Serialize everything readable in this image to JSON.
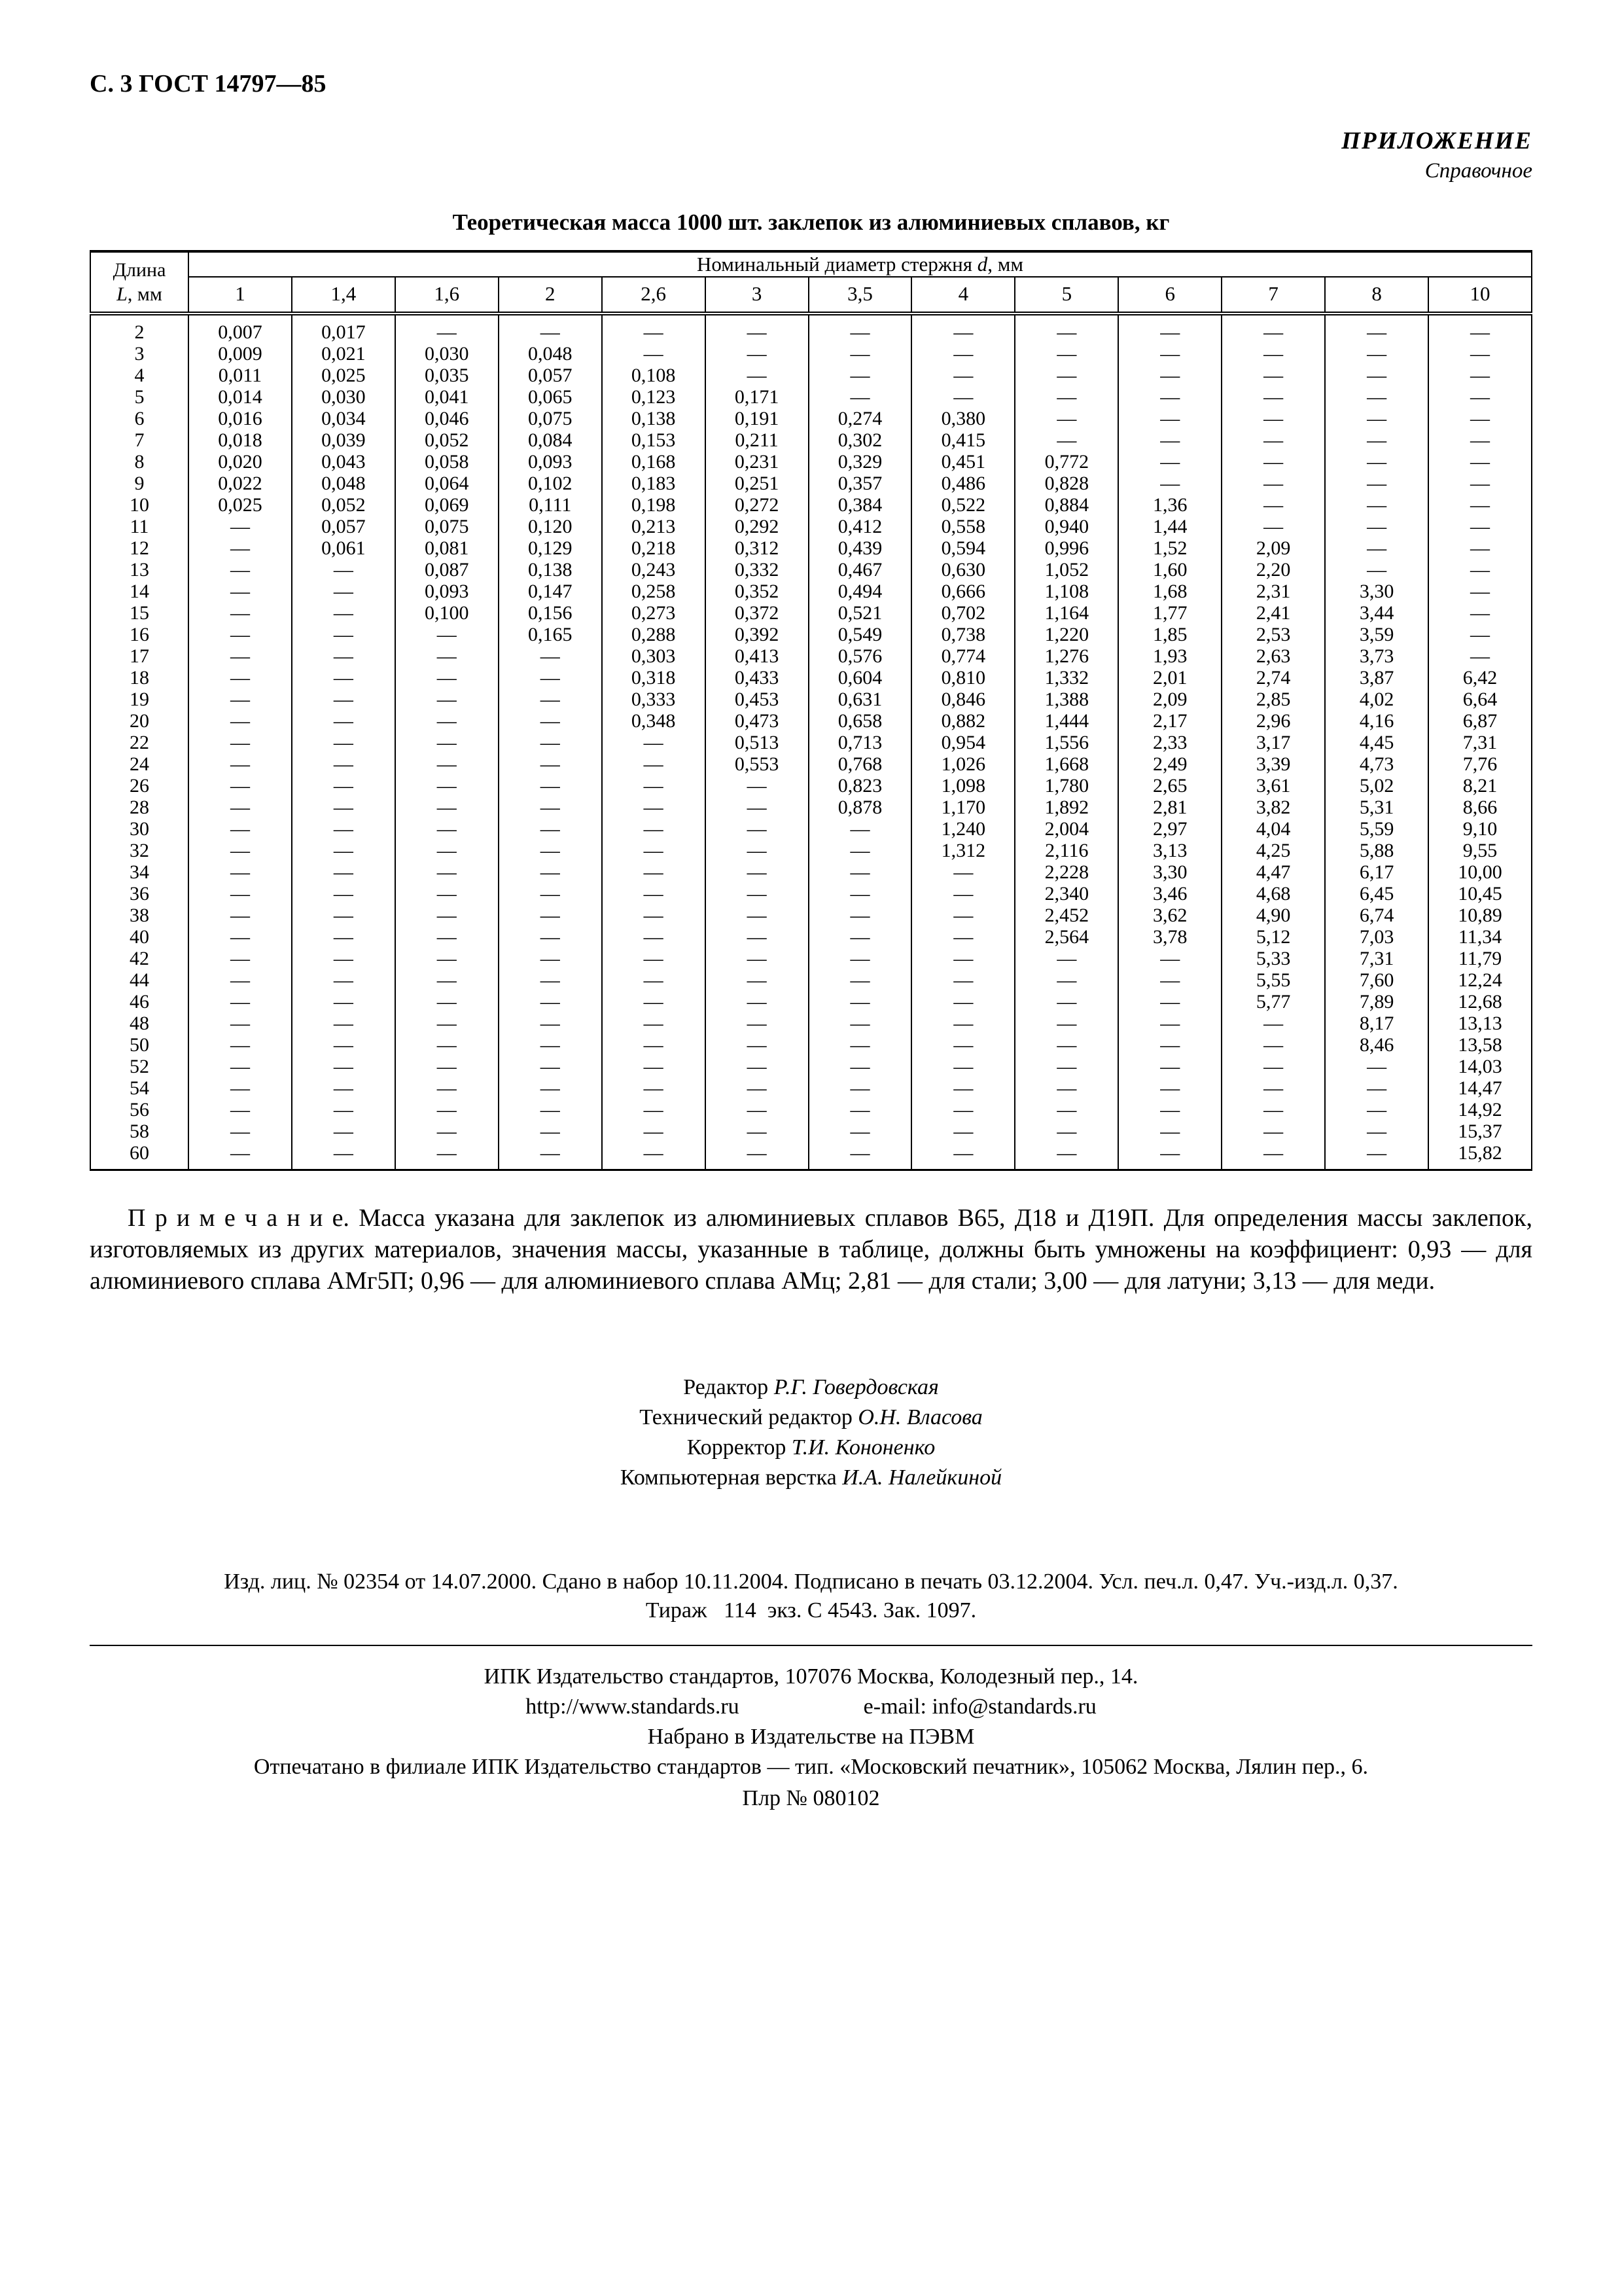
{
  "page_header": "С. 3 ГОСТ 14797—85",
  "annex": {
    "title": "ПРИЛОЖЕНИЕ",
    "subtitle": "Справочное"
  },
  "table_title": "Теоретическая масса 1000 шт. заклепок из алюминиевых сплавов, кг",
  "table": {
    "length_label": "Длина",
    "length_symbol": "L",
    "length_unit": ", мм",
    "diameter_prefix": "Номинальный диаметр стержня ",
    "diameter_symbol": "d",
    "diameter_suffix": ", мм",
    "diameters": [
      "1",
      "1,4",
      "1,6",
      "2",
      "2,6",
      "3",
      "3,5",
      "4",
      "5",
      "6",
      "7",
      "8",
      "10"
    ],
    "rows": [
      {
        "L": "2",
        "values": [
          "0,007",
          "0,017",
          "—",
          "—",
          "—",
          "—",
          "—",
          "—",
          "—",
          "—",
          "—",
          "—",
          "—"
        ]
      },
      {
        "L": "3",
        "values": [
          "0,009",
          "0,021",
          "0,030",
          "0,048",
          "—",
          "—",
          "—",
          "—",
          "—",
          "—",
          "—",
          "—",
          "—"
        ]
      },
      {
        "L": "4",
        "values": [
          "0,011",
          "0,025",
          "0,035",
          "0,057",
          "0,108",
          "—",
          "—",
          "—",
          "—",
          "—",
          "—",
          "—",
          "—"
        ]
      },
      {
        "L": "5",
        "values": [
          "0,014",
          "0,030",
          "0,041",
          "0,065",
          "0,123",
          "0,171",
          "—",
          "—",
          "—",
          "—",
          "—",
          "—",
          "—"
        ]
      },
      {
        "L": "6",
        "values": [
          "0,016",
          "0,034",
          "0,046",
          "0,075",
          "0,138",
          "0,191",
          "0,274",
          "0,380",
          "—",
          "—",
          "—",
          "—",
          "—"
        ]
      },
      {
        "L": "7",
        "values": [
          "0,018",
          "0,039",
          "0,052",
          "0,084",
          "0,153",
          "0,211",
          "0,302",
          "0,415",
          "—",
          "—",
          "—",
          "—",
          "—"
        ]
      },
      {
        "L": "8",
        "values": [
          "0,020",
          "0,043",
          "0,058",
          "0,093",
          "0,168",
          "0,231",
          "0,329",
          "0,451",
          "0,772",
          "—",
          "—",
          "—",
          "—"
        ]
      },
      {
        "L": "9",
        "values": [
          "0,022",
          "0,048",
          "0,064",
          "0,102",
          "0,183",
          "0,251",
          "0,357",
          "0,486",
          "0,828",
          "—",
          "—",
          "—",
          "—"
        ]
      },
      {
        "L": "10",
        "values": [
          "0,025",
          "0,052",
          "0,069",
          "0,111",
          "0,198",
          "0,272",
          "0,384",
          "0,522",
          "0,884",
          "1,36",
          "—",
          "—",
          "—"
        ]
      },
      {
        "L": "11",
        "values": [
          "—",
          "0,057",
          "0,075",
          "0,120",
          "0,213",
          "0,292",
          "0,412",
          "0,558",
          "0,940",
          "1,44",
          "—",
          "—",
          "—"
        ]
      },
      {
        "L": "12",
        "values": [
          "—",
          "0,061",
          "0,081",
          "0,129",
          "0,218",
          "0,312",
          "0,439",
          "0,594",
          "0,996",
          "1,52",
          "2,09",
          "—",
          "—"
        ]
      },
      {
        "L": "13",
        "values": [
          "—",
          "—",
          "0,087",
          "0,138",
          "0,243",
          "0,332",
          "0,467",
          "0,630",
          "1,052",
          "1,60",
          "2,20",
          "—",
          "—"
        ]
      },
      {
        "L": "14",
        "values": [
          "—",
          "—",
          "0,093",
          "0,147",
          "0,258",
          "0,352",
          "0,494",
          "0,666",
          "1,108",
          "1,68",
          "2,31",
          "3,30",
          "—"
        ]
      },
      {
        "L": "15",
        "values": [
          "—",
          "—",
          "0,100",
          "0,156",
          "0,273",
          "0,372",
          "0,521",
          "0,702",
          "1,164",
          "1,77",
          "2,41",
          "3,44",
          "—"
        ]
      },
      {
        "L": "16",
        "values": [
          "—",
          "—",
          "—",
          "0,165",
          "0,288",
          "0,392",
          "0,549",
          "0,738",
          "1,220",
          "1,85",
          "2,53",
          "3,59",
          "—"
        ]
      },
      {
        "L": "17",
        "values": [
          "—",
          "—",
          "—",
          "—",
          "0,303",
          "0,413",
          "0,576",
          "0,774",
          "1,276",
          "1,93",
          "2,63",
          "3,73",
          "—"
        ]
      },
      {
        "L": "18",
        "values": [
          "—",
          "—",
          "—",
          "—",
          "0,318",
          "0,433",
          "0,604",
          "0,810",
          "1,332",
          "2,01",
          "2,74",
          "3,87",
          "6,42"
        ]
      },
      {
        "L": "19",
        "values": [
          "—",
          "—",
          "—",
          "—",
          "0,333",
          "0,453",
          "0,631",
          "0,846",
          "1,388",
          "2,09",
          "2,85",
          "4,02",
          "6,64"
        ]
      },
      {
        "L": "20",
        "values": [
          "—",
          "—",
          "—",
          "—",
          "0,348",
          "0,473",
          "0,658",
          "0,882",
          "1,444",
          "2,17",
          "2,96",
          "4,16",
          "6,87"
        ]
      },
      {
        "L": "22",
        "values": [
          "—",
          "—",
          "—",
          "—",
          "—",
          "0,513",
          "0,713",
          "0,954",
          "1,556",
          "2,33",
          "3,17",
          "4,45",
          "7,31"
        ]
      },
      {
        "L": "24",
        "values": [
          "—",
          "—",
          "—",
          "—",
          "—",
          "0,553",
          "0,768",
          "1,026",
          "1,668",
          "2,49",
          "3,39",
          "4,73",
          "7,76"
        ]
      },
      {
        "L": "26",
        "values": [
          "—",
          "—",
          "—",
          "—",
          "—",
          "—",
          "0,823",
          "1,098",
          "1,780",
          "2,65",
          "3,61",
          "5,02",
          "8,21"
        ]
      },
      {
        "L": "28",
        "values": [
          "—",
          "—",
          "—",
          "—",
          "—",
          "—",
          "0,878",
          "1,170",
          "1,892",
          "2,81",
          "3,82",
          "5,31",
          "8,66"
        ]
      },
      {
        "L": "30",
        "values": [
          "—",
          "—",
          "—",
          "—",
          "—",
          "—",
          "—",
          "1,240",
          "2,004",
          "2,97",
          "4,04",
          "5,59",
          "9,10"
        ]
      },
      {
        "L": "32",
        "values": [
          "—",
          "—",
          "—",
          "—",
          "—",
          "—",
          "—",
          "1,312",
          "2,116",
          "3,13",
          "4,25",
          "5,88",
          "9,55"
        ]
      },
      {
        "L": "34",
        "values": [
          "—",
          "—",
          "—",
          "—",
          "—",
          "—",
          "—",
          "—",
          "2,228",
          "3,30",
          "4,47",
          "6,17",
          "10,00"
        ]
      },
      {
        "L": "36",
        "values": [
          "—",
          "—",
          "—",
          "—",
          "—",
          "—",
          "—",
          "—",
          "2,340",
          "3,46",
          "4,68",
          "6,45",
          "10,45"
        ]
      },
      {
        "L": "38",
        "values": [
          "—",
          "—",
          "—",
          "—",
          "—",
          "—",
          "—",
          "—",
          "2,452",
          "3,62",
          "4,90",
          "6,74",
          "10,89"
        ]
      },
      {
        "L": "40",
        "values": [
          "—",
          "—",
          "—",
          "—",
          "—",
          "—",
          "—",
          "—",
          "2,564",
          "3,78",
          "5,12",
          "7,03",
          "11,34"
        ]
      },
      {
        "L": "42",
        "values": [
          "—",
          "—",
          "—",
          "—",
          "—",
          "—",
          "—",
          "—",
          "—",
          "—",
          "5,33",
          "7,31",
          "11,79"
        ]
      },
      {
        "L": "44",
        "values": [
          "—",
          "—",
          "—",
          "—",
          "—",
          "—",
          "—",
          "—",
          "—",
          "—",
          "5,55",
          "7,60",
          "12,24"
        ]
      },
      {
        "L": "46",
        "values": [
          "—",
          "—",
          "—",
          "—",
          "—",
          "—",
          "—",
          "—",
          "—",
          "—",
          "5,77",
          "7,89",
          "12,68"
        ]
      },
      {
        "L": "48",
        "values": [
          "—",
          "—",
          "—",
          "—",
          "—",
          "—",
          "—",
          "—",
          "—",
          "—",
          "—",
          "8,17",
          "13,13"
        ]
      },
      {
        "L": "50",
        "values": [
          "—",
          "—",
          "—",
          "—",
          "—",
          "—",
          "—",
          "—",
          "—",
          "—",
          "—",
          "8,46",
          "13,58"
        ]
      },
      {
        "L": "52",
        "values": [
          "—",
          "—",
          "—",
          "—",
          "—",
          "—",
          "—",
          "—",
          "—",
          "—",
          "—",
          "—",
          "14,03"
        ]
      },
      {
        "L": "54",
        "values": [
          "—",
          "—",
          "—",
          "—",
          "—",
          "—",
          "—",
          "—",
          "—",
          "—",
          "—",
          "—",
          "14,47"
        ]
      },
      {
        "L": "56",
        "values": [
          "—",
          "—",
          "—",
          "—",
          "—",
          "—",
          "—",
          "—",
          "—",
          "—",
          "—",
          "—",
          "14,92"
        ]
      },
      {
        "L": "58",
        "values": [
          "—",
          "—",
          "—",
          "—",
          "—",
          "—",
          "—",
          "—",
          "—",
          "—",
          "—",
          "—",
          "15,37"
        ]
      },
      {
        "L": "60",
        "values": [
          "—",
          "—",
          "—",
          "—",
          "—",
          "—",
          "—",
          "—",
          "—",
          "—",
          "—",
          "—",
          "15,82"
        ]
      }
    ]
  },
  "note": {
    "label": "П р и м е ч а н и е.",
    "text": "Масса указана для заклепок из алюминиевых сплавов В65, Д18 и Д19П. Для определения массы заклепок, изготовляемых из других материалов, значения массы, указанные в таблице, должны быть умножены на коэффициент: 0,93 — для алюминиевого сплава АМг5П; 0,96 — для алюминиевого сплава АМц; 2,81 — для стали; 3,00 — для латуни; 3,13 — для меди."
  },
  "credits": [
    {
      "role": "Редактор",
      "name": "Р.Г. Говердовская"
    },
    {
      "role": "Технический редактор",
      "name": "О.Н. Власова"
    },
    {
      "role": "Корректор",
      "name": "Т.И. Кононенко"
    },
    {
      "role": "Компьютерная верстка",
      "name": "И.А. Налейкиной"
    }
  ],
  "imprint": {
    "line1": "Изд. лиц. № 02354 от 14.07.2000. Сдано в набор 10.11.2004. Подписано в печать 03.12.2004. Усл. печ.л. 0,47. Уч.-изд.л. 0,37.",
    "line2": "Тираж   114  экз. С 4543. Зак. 1097."
  },
  "publisher": {
    "address": "ИПК Издательство стандартов, 107076 Москва, Колодезный пер., 14.",
    "website": "http://www.standards.ru",
    "email": "e-mail: info@standards.ru",
    "typeset": "Набрано в Издательстве на ПЭВМ",
    "printed": "Отпечатано в филиале ИПК Издательство стандартов — тип. «Московский печатник», 105062 Москва, Лялин пер., 6.",
    "plr": "Плр № 080102"
  }
}
